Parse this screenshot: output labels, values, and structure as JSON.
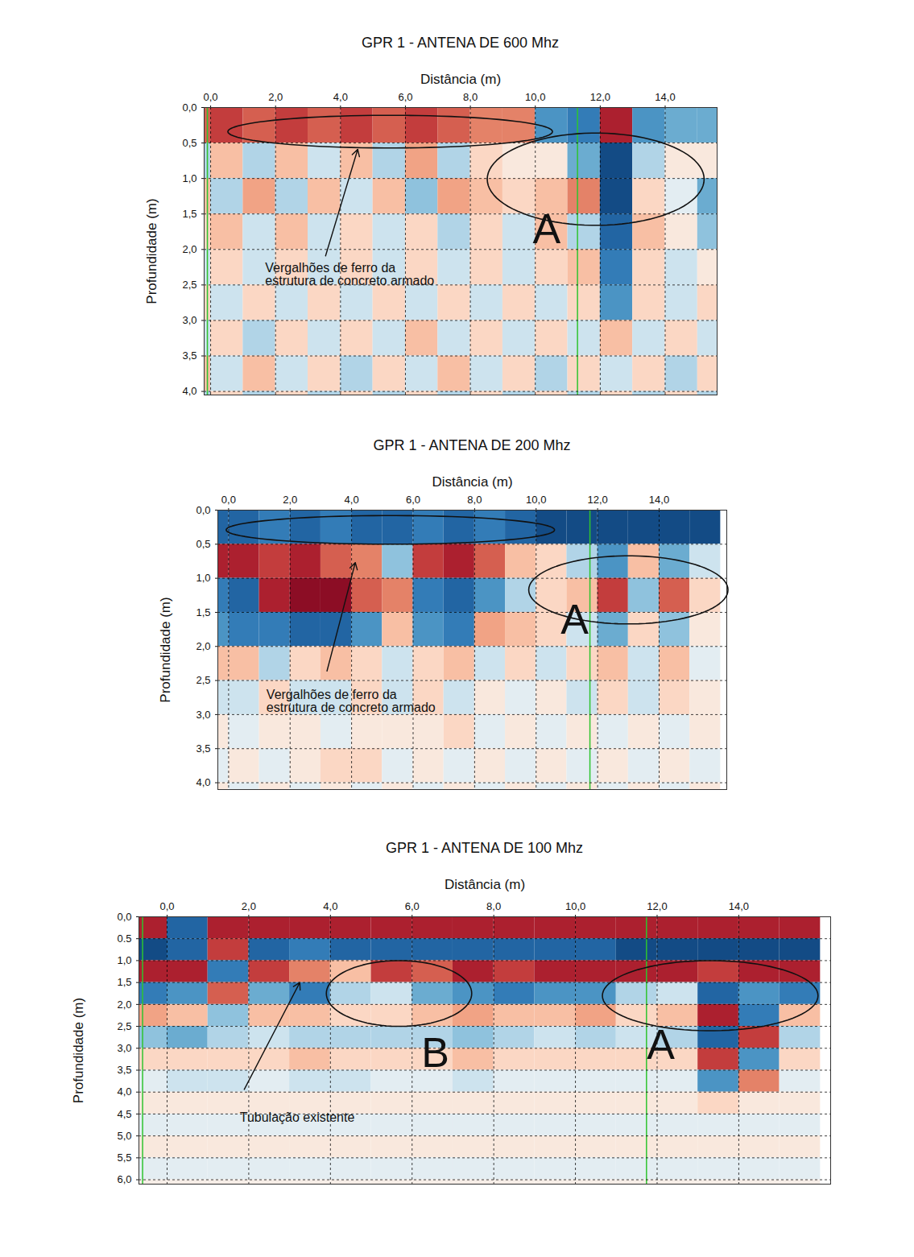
{
  "chart_data": [
    {
      "type": "heatmap",
      "title": "GPR 1 - ANTENA DE 600 Mhz",
      "x_label": "Distância (m)",
      "y_label": "Profundidade (m)",
      "xlim": [
        -0.2,
        15.6
      ],
      "ylim": [
        0,
        4.05
      ],
      "grid": true,
      "xticks": [
        {
          "value": 0,
          "label": "0,0"
        },
        {
          "value": 2,
          "label": "2,0"
        },
        {
          "value": 4,
          "label": "4,0"
        },
        {
          "value": 6,
          "label": "6,0"
        },
        {
          "value": 8,
          "label": "8,0"
        },
        {
          "value": 10,
          "label": "10,0"
        },
        {
          "value": 12,
          "label": "12,0"
        },
        {
          "value": 14,
          "label": "14,0"
        }
      ],
      "yticks": [
        {
          "value": 0,
          "label": "0,0"
        },
        {
          "value": 0.5,
          "label": "0,5"
        },
        {
          "value": 1,
          "label": "1,0"
        },
        {
          "value": 1.5,
          "label": "1,5"
        },
        {
          "value": 2,
          "label": "2,0"
        },
        {
          "value": 2.5,
          "label": "2,5"
        },
        {
          "value": 3,
          "label": "3,0"
        },
        {
          "value": 3.5,
          "label": "3,5"
        },
        {
          "value": 4,
          "label": "4,0"
        }
      ],
      "zlim": [
        -1,
        1
      ],
      "x_edges": [
        -1,
        0,
        1,
        2,
        3,
        4,
        5,
        6,
        7,
        8,
        9,
        10,
        11,
        12,
        13,
        14,
        15,
        16
      ],
      "depth_edges": [
        0,
        0.5,
        1,
        1.5,
        2,
        2.5,
        3,
        3.5,
        4,
        4.5
      ],
      "cells": [
        [
          0.6,
          0.7,
          0.6,
          0.7,
          0.6,
          0.7,
          0.6,
          0.7,
          0.6,
          0.5,
          0.5,
          -0.6,
          -0.7,
          0.8,
          -0.6,
          -0.5,
          -0.5
        ],
        [
          -0.3,
          0.3,
          -0.3,
          0.3,
          -0.2,
          0.3,
          -0.3,
          0.4,
          -0.3,
          0.2,
          0.1,
          0.1,
          -0.5,
          -0.9,
          -0.3,
          0.1,
          0.1
        ],
        [
          0.3,
          -0.3,
          0.4,
          -0.3,
          0.3,
          -0.2,
          0.3,
          -0.4,
          0.4,
          0.3,
          0.2,
          0.3,
          0.5,
          -0.9,
          0.2,
          -0.1,
          -0.5
        ],
        [
          0.2,
          0.3,
          -0.2,
          0.3,
          -0.2,
          0.2,
          -0.2,
          0.2,
          -0.3,
          0.2,
          -0.2,
          0.3,
          -0.3,
          -0.8,
          0.3,
          0.1,
          -0.4
        ],
        [
          -0.2,
          0.2,
          -0.2,
          0.2,
          -0.2,
          0.2,
          -0.2,
          0.2,
          -0.2,
          0.2,
          -0.2,
          0.2,
          0.3,
          -0.7,
          0.2,
          -0.2,
          0.1
        ],
        [
          0.2,
          -0.2,
          0.2,
          -0.2,
          0.2,
          -0.2,
          0.2,
          -0.2,
          0.2,
          -0.2,
          0.2,
          -0.2,
          0.2,
          -0.6,
          0.2,
          -0.2,
          0.2
        ],
        [
          -0.2,
          0.2,
          -0.3,
          0.2,
          -0.2,
          0.2,
          -0.2,
          0.3,
          -0.2,
          0.2,
          -0.2,
          0.2,
          -0.2,
          0.3,
          -0.2,
          0.2,
          -0.2
        ],
        [
          0.3,
          -0.2,
          0.3,
          -0.2,
          0.2,
          -0.3,
          0.2,
          -0.2,
          0.3,
          -0.2,
          0.2,
          -0.3,
          0.2,
          -0.2,
          0.2,
          -0.3,
          0.2
        ],
        [
          -0.3,
          0.2,
          -0.3,
          0.2,
          -0.3,
          0.2,
          -0.3,
          0.2,
          -0.3,
          0.2,
          -0.3,
          0.2,
          -0.3,
          0.2,
          -0.3,
          0.2,
          -0.3
        ]
      ],
      "vertical_lines": [
        -0.1,
        11.3
      ],
      "ellipses": [
        {
          "x": 5.53,
          "y": 0.34,
          "rx": 5.0,
          "ry": 0.23
        },
        {
          "x": 11.86,
          "y": 1.01,
          "rx": 3.34,
          "ry": 0.65
        }
      ],
      "annotations": [
        {
          "text": "Vergalhões de ferro da\nestrutura de concreto armado",
          "x": 1.68,
          "y": 2.35
        },
        {
          "text": "A",
          "x": 10.35,
          "y": 1.72
        }
      ],
      "arrows": [
        {
          "x1": 3.54,
          "y1": 2.09,
          "x2": 4.53,
          "y2": 0.59
        }
      ]
    },
    {
      "type": "heatmap",
      "title": "GPR 1 - ANTENA DE 200 Mhz",
      "x_label": "Distância (m)",
      "y_label": "Profundidade (m)",
      "xlim": [
        -0.35,
        16.2
      ],
      "ylim": [
        0,
        4.1
      ],
      "grid": true,
      "xticks": [
        {
          "value": 0,
          "label": "0,0"
        },
        {
          "value": 2,
          "label": "2,0"
        },
        {
          "value": 4,
          "label": "4,0"
        },
        {
          "value": 6,
          "label": "6,0"
        },
        {
          "value": 8,
          "label": "8,0"
        },
        {
          "value": 10,
          "label": "10,0"
        },
        {
          "value": 12,
          "label": "12,0"
        },
        {
          "value": 14,
          "label": "14,0"
        }
      ],
      "yticks": [
        {
          "value": 0,
          "label": "0,0"
        },
        {
          "value": 0.5,
          "label": "0,5"
        },
        {
          "value": 1,
          "label": "1,0"
        },
        {
          "value": 1.5,
          "label": "1,5"
        },
        {
          "value": 2,
          "label": "2,0"
        },
        {
          "value": 2.5,
          "label": "2,5"
        },
        {
          "value": 3,
          "label": "3,0"
        },
        {
          "value": 3.5,
          "label": "3,5"
        },
        {
          "value": 4,
          "label": "4,0"
        }
      ],
      "zlim": [
        -1,
        1
      ],
      "x_edges": [
        -1,
        0,
        1,
        2,
        3,
        4,
        5,
        6,
        7,
        8,
        9,
        10,
        11,
        12,
        13,
        14,
        15,
        16
      ],
      "depth_edges": [
        0,
        0.5,
        1,
        1.5,
        2,
        2.5,
        3,
        3.5,
        4,
        4.5
      ],
      "cells": [
        [
          -0.8,
          -0.8,
          -0.7,
          -0.8,
          -0.7,
          -0.8,
          -0.8,
          -0.7,
          -0.8,
          -0.7,
          -0.8,
          -0.9,
          -0.9,
          -0.9,
          -0.9,
          -0.9,
          -0.9
        ],
        [
          0.8,
          0.8,
          0.7,
          0.8,
          0.6,
          0.5,
          -0.4,
          0.7,
          0.8,
          0.6,
          0.3,
          0.2,
          -0.3,
          -0.6,
          0.3,
          -0.5,
          -0.2
        ],
        [
          -0.7,
          -0.8,
          0.8,
          0.9,
          0.9,
          0.6,
          0.5,
          -0.7,
          -0.8,
          -0.6,
          -0.3,
          0.2,
          0.3,
          0.7,
          -0.4,
          0.6,
          0.2
        ],
        [
          -0.6,
          -0.7,
          -0.7,
          -0.8,
          -0.8,
          -0.6,
          0.3,
          -0.6,
          -0.7,
          0.4,
          0.3,
          0.2,
          -0.2,
          -0.5,
          0.2,
          -0.4,
          0.1
        ],
        [
          0.3,
          0.3,
          -0.3,
          0.2,
          0.3,
          0.2,
          -0.2,
          0.2,
          0.3,
          -0.2,
          0.2,
          -0.2,
          0.2,
          0.3,
          -0.2,
          0.3,
          -0.1
        ],
        [
          -0.2,
          -0.2,
          0.2,
          -0.2,
          -0.2,
          0.2,
          -0.2,
          0.2,
          -0.2,
          0.1,
          -0.1,
          0.1,
          -0.2,
          0.2,
          -0.2,
          0.2,
          0.1
        ],
        [
          0.1,
          -0.1,
          0.1,
          0.1,
          -0.1,
          0.1,
          0.1,
          0.1,
          0.2,
          -0.1,
          0.1,
          -0.1,
          0.1,
          -0.1,
          0.1,
          -0.1,
          0.1
        ],
        [
          -0.1,
          0.1,
          -0.1,
          0.1,
          0.2,
          0.2,
          -0.1,
          0.1,
          -0.1,
          0.1,
          -0.1,
          0.1,
          -0.1,
          0.1,
          -0.1,
          0.1,
          -0.1
        ],
        [
          0.1,
          -0.1,
          0.1,
          -0.1,
          0.1,
          -0.1,
          0.1,
          -0.1,
          0.1,
          -0.1,
          0.1,
          -0.1,
          0.1,
          -0.1,
          0.1,
          -0.1,
          0.1
        ]
      ],
      "vertical_lines": [
        11.75
      ],
      "ellipses": [
        {
          "x": 5.26,
          "y": 0.29,
          "rx": 5.34,
          "ry": 0.21
        },
        {
          "x": 13.0,
          "y": 1.17,
          "rx": 3.24,
          "ry": 0.5
        }
      ],
      "annotations": [
        {
          "text": "Vergalhões de ferro da\nestrutura de concreto armado",
          "x": 1.23,
          "y": 2.81
        },
        {
          "text": "A",
          "x": 11.25,
          "y": 1.62
        }
      ],
      "arrows": [
        {
          "x1": 3.2,
          "y1": 2.36,
          "x2": 4.12,
          "y2": 0.77
        }
      ]
    },
    {
      "type": "heatmap",
      "title": "GPR 1 - ANTENA DE 100 Mhz",
      "x_label": "Distância (m)",
      "y_label": "Profundidade (m)",
      "xlim": [
        -0.69,
        16.25
      ],
      "ylim": [
        0,
        6.1
      ],
      "grid": true,
      "xticks": [
        {
          "value": 0,
          "label": "0,0"
        },
        {
          "value": 2,
          "label": "2,0"
        },
        {
          "value": 4,
          "label": "4,0"
        },
        {
          "value": 6,
          "label": "6,0"
        },
        {
          "value": 8,
          "label": "8,0"
        },
        {
          "value": 10,
          "label": "10,0"
        },
        {
          "value": 12,
          "label": "12,0"
        },
        {
          "value": 14,
          "label": "14,0"
        }
      ],
      "yticks": [
        {
          "value": 0,
          "label": "0,0"
        },
        {
          "value": 0.5,
          "label": "0.5"
        },
        {
          "value": 1,
          "label": "1,0"
        },
        {
          "value": 1.5,
          "label": "1,5"
        },
        {
          "value": 2,
          "label": "2,0"
        },
        {
          "value": 2.5,
          "label": "2,5"
        },
        {
          "value": 3,
          "label": "3,0"
        },
        {
          "value": 3.5,
          "label": "3,5"
        },
        {
          "value": 4,
          "label": "4,0"
        },
        {
          "value": 4.5,
          "label": "4,5"
        },
        {
          "value": 5,
          "label": "5,0"
        },
        {
          "value": 5.5,
          "label": "5,5"
        },
        {
          "value": 6,
          "label": "6,0"
        }
      ],
      "zlim": [
        -1,
        1
      ],
      "x_edges": [
        -1,
        0,
        1,
        2,
        3,
        4,
        5,
        6,
        7,
        8,
        9,
        10,
        11,
        12,
        13,
        14,
        15,
        16
      ],
      "depth_edges": [
        0,
        0.5,
        1,
        1.5,
        2,
        2.5,
        3,
        3.5,
        4,
        4.5,
        5,
        5.5,
        6,
        6.5
      ],
      "cells": [
        [
          0.8,
          -0.8,
          0.8,
          0.8,
          0.8,
          0.8,
          0.8,
          0.8,
          0.8,
          0.8,
          0.8,
          0.8,
          0.8,
          0.8,
          0.8,
          0.8,
          0.8
        ],
        [
          -0.9,
          -0.8,
          0.7,
          -0.8,
          -0.7,
          -0.8,
          -0.8,
          -0.8,
          -0.8,
          -0.8,
          -0.8,
          -0.8,
          -0.9,
          -0.9,
          -0.9,
          -0.9,
          -0.9
        ],
        [
          0.8,
          0.8,
          -0.7,
          0.7,
          0.5,
          0.3,
          0.7,
          0.6,
          0.8,
          0.7,
          0.8,
          0.8,
          0.8,
          0.8,
          0.7,
          0.8,
          0.8
        ],
        [
          -0.7,
          -0.6,
          0.6,
          -0.5,
          -0.7,
          -0.3,
          -0.2,
          -0.5,
          -0.6,
          -0.7,
          -0.6,
          -0.6,
          -0.3,
          -0.2,
          -0.8,
          -0.6,
          -0.7
        ],
        [
          0.4,
          0.3,
          -0.4,
          0.3,
          0.3,
          0.2,
          0.2,
          0.3,
          0.4,
          0.3,
          0.3,
          0.4,
          0.2,
          0.3,
          0.8,
          -0.7,
          0.3
        ],
        [
          -0.4,
          -0.5,
          -0.3,
          -0.2,
          -0.3,
          -0.3,
          -0.3,
          -0.3,
          -0.4,
          -0.3,
          -0.2,
          -0.3,
          -0.2,
          -0.3,
          -0.8,
          0.7,
          -0.3
        ],
        [
          0.2,
          0.2,
          0.2,
          0.2,
          0.3,
          0.2,
          0.2,
          0.2,
          0.3,
          0.2,
          0.2,
          0.2,
          0.2,
          0.2,
          0.7,
          -0.6,
          0.2
        ],
        [
          -0.1,
          -0.2,
          -0.2,
          -0.1,
          -0.2,
          -0.2,
          -0.1,
          -0.1,
          -0.2,
          -0.1,
          -0.1,
          -0.1,
          -0.1,
          -0.1,
          -0.6,
          0.5,
          -0.1
        ],
        [
          0.1,
          0.1,
          0.1,
          0.1,
          0.1,
          0.1,
          0.1,
          0.1,
          0.1,
          0.1,
          0.1,
          0.1,
          0.1,
          0.1,
          0.2,
          0.1,
          0.1
        ],
        [
          -0.1,
          -0.1,
          -0.1,
          -0.1,
          -0.1,
          -0.1,
          -0.1,
          -0.1,
          -0.1,
          -0.1,
          -0.1,
          -0.1,
          -0.1,
          -0.1,
          -0.1,
          -0.1,
          -0.1
        ],
        [
          0.1,
          0.1,
          0.1,
          0.1,
          0.1,
          0.1,
          0.1,
          0.1,
          0.1,
          0.1,
          0.1,
          0.1,
          0.1,
          0.1,
          0.1,
          0.1,
          0.1
        ],
        [
          -0.1,
          -0.1,
          -0.1,
          -0.1,
          -0.1,
          -0.1,
          -0.1,
          -0.1,
          -0.1,
          -0.1,
          -0.1,
          -0.1,
          -0.1,
          -0.1,
          -0.1,
          -0.1,
          -0.1
        ],
        [
          0.05,
          0.05,
          0.05,
          0.05,
          0.05,
          0.05,
          0.05,
          0.05,
          0.05,
          0.05,
          0.05,
          0.05,
          0.05,
          0.05,
          0.05,
          0.05,
          0.05
        ]
      ],
      "vertical_lines": [
        -0.6,
        11.74
      ],
      "ellipses": [
        {
          "x": 5.68,
          "y": 1.75,
          "rx": 1.78,
          "ry": 0.75
        },
        {
          "x": 13.3,
          "y": 1.8,
          "rx": 2.64,
          "ry": 0.8
        }
      ],
      "annotations": [
        {
          "text": "Tubulação existente",
          "x": 1.78,
          "y": 4.59
        },
        {
          "text": "B",
          "x": 6.57,
          "y": 3.12
        },
        {
          "text": "A",
          "x": 12.09,
          "y": 2.94
        }
      ],
      "arrows": [
        {
          "x1": 1.89,
          "y1": 3.94,
          "x2": 3.25,
          "y2": 1.5
        }
      ]
    }
  ]
}
